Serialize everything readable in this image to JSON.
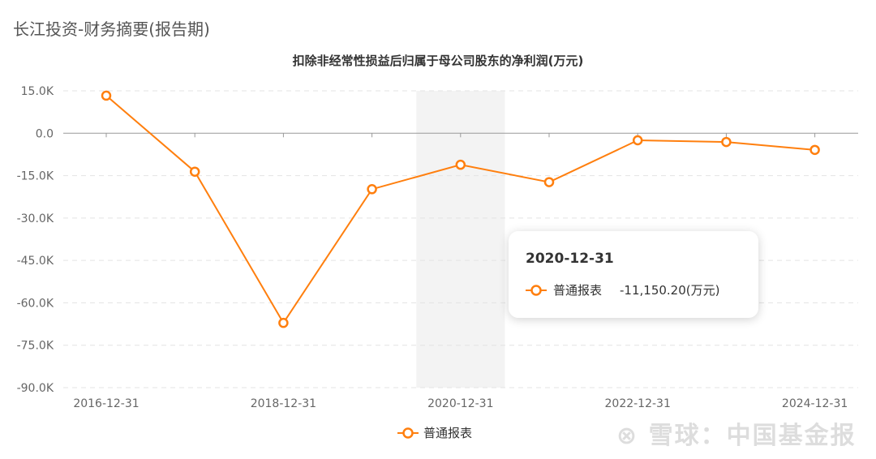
{
  "header": {
    "title": "长江投资-财务摘要(报告期)"
  },
  "watermark": "雪球：中国基金报",
  "tooltip": {
    "date": "2020-12-31",
    "series": "普通报表",
    "value": "-11,150.20(万元)"
  },
  "chart_data": {
    "type": "line",
    "title": "扣除非经常性损益后归属于母公司股东的净利润(万元)",
    "categories": [
      "2016-12-31",
      "2017-12-31",
      "2018-12-31",
      "2019-12-31",
      "2020-12-31",
      "2021-12-31",
      "2022-12-31",
      "2023-12-31",
      "2024-12-31"
    ],
    "x_tick_labels": [
      "2016-12-31",
      "2018-12-31",
      "2020-12-31",
      "2022-12-31",
      "2024-12-31"
    ],
    "series": [
      {
        "name": "普通报表",
        "color": "#ff7f0e",
        "values": [
          13300,
          -13600,
          -67100,
          -19800,
          -11150.2,
          -17300,
          -2500,
          -3100,
          -5900
        ]
      }
    ],
    "y_ticks": [
      15000,
      0,
      -15000,
      -30000,
      -45000,
      -60000,
      -75000,
      -90000
    ],
    "y_tick_labels": [
      "15.0K",
      "0.0",
      "-15.0K",
      "-30.0K",
      "-45.0K",
      "-60.0K",
      "-75.0K",
      "-90.0K"
    ],
    "ylim": [
      -90000,
      15000
    ],
    "grid": true,
    "highlighted_category": "2020-12-31",
    "legend_position": "bottom"
  }
}
